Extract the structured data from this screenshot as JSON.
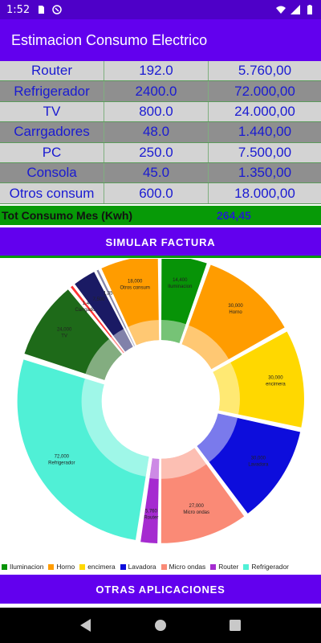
{
  "status_bar": {
    "time": "1:52",
    "icons": [
      "sd-card-icon",
      "sync-icon",
      "wifi-icon",
      "signal-icon",
      "battery-icon"
    ]
  },
  "app_bar": {
    "title": "Estimacion Consumo Electrico"
  },
  "table": {
    "rows": [
      {
        "name": "Router",
        "kwh": "192.0",
        "cost": "5.760,00"
      },
      {
        "name": "Refrigerador",
        "kwh": "2400.0",
        "cost": "72.000,00"
      },
      {
        "name": "TV",
        "kwh": "800.0",
        "cost": "24.000,00"
      },
      {
        "name": "Carrgadores",
        "kwh": "48.0",
        "cost": "1.440,00"
      },
      {
        "name": "PC",
        "kwh": "250.0",
        "cost": "7.500,00"
      },
      {
        "name": "Consola",
        "kwh": "45.0",
        "cost": "1.350,00"
      },
      {
        "name": "Otros consum",
        "kwh": "600.0",
        "cost": "18.000,00"
      }
    ],
    "total_label": "Tot Consumo Mes (Kwh)",
    "total_value": "264,45"
  },
  "buttons": {
    "simulate": "SIMULAR FACTURA",
    "other_apps": "OTRAS APLICACIONES"
  },
  "chart_data": {
    "type": "pie",
    "values": [
      14400,
      30000,
      30000,
      30000,
      27000,
      5760,
      72000,
      24000,
      1440,
      7500,
      1350,
      18000
    ],
    "slice_labels": [
      "14,400\nIluminacion",
      "30,000\nHorno",
      "30,000\nencimera",
      "30,000\nLavadora",
      "27,000\nMicro ondas",
      "5,760\nRouter",
      "72,000\nRefrigerador",
      "24,000\nTV",
      "1,440\nCarrgadores",
      "7,500",
      "1,350",
      "18,000\nOtros consum"
    ],
    "colors": [
      "#079307",
      "#ff9c00",
      "#ffd800",
      "#0d0ddc",
      "#fa8a76",
      "#a52bd0",
      "#50f0d6",
      "#1e6a19",
      "#ff3333",
      "#1a1a64",
      "#8585a8",
      "#ff9c00"
    ],
    "legend": [
      {
        "label": "Iluminacion",
        "color": "#079307"
      },
      {
        "label": "Horno",
        "color": "#ff9c00"
      },
      {
        "label": "encimera",
        "color": "#ffd800"
      },
      {
        "label": "Lavadora",
        "color": "#0d0ddc"
      },
      {
        "label": "Micro ondas",
        "color": "#fa8a76"
      },
      {
        "label": "Router",
        "color": "#a52bd0"
      },
      {
        "label": "Refrigerador",
        "color": "#50f0d6"
      }
    ]
  }
}
